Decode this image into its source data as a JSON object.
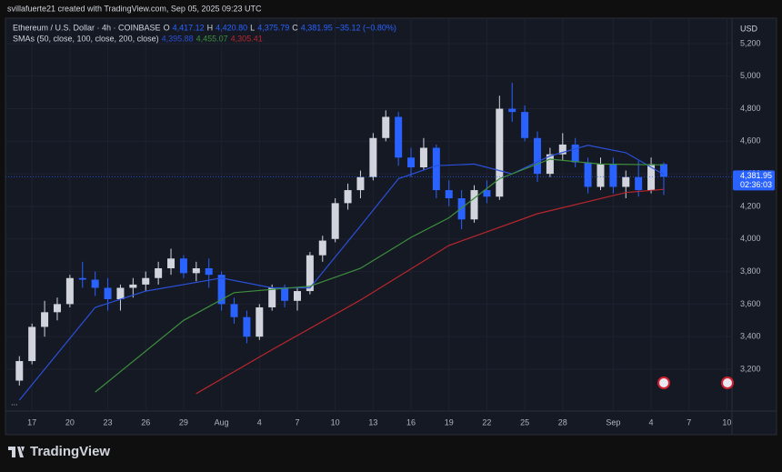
{
  "header": {
    "credit": "svillafuerte21 created with TradingView.com, Sep 05, 2025 09:23 UTC"
  },
  "chart_data": {
    "type": "candlestick",
    "symbol": "Ethereum / U.S. Dollar · 4h · COINBASE",
    "ohlc_legend": [
      {
        "label": "O",
        "value": "4,417.12"
      },
      {
        "label": "H",
        "value": "4,420.80"
      },
      {
        "label": "L",
        "value": "4,375.79"
      },
      {
        "label": "C",
        "value": "4,381.95"
      }
    ],
    "change": "−35.12 (−0.80%)",
    "indicator": "SMAs (50, close, 100, close, 200, close)",
    "currency": "USD",
    "collapse_label": "...",
    "x": [
      -1,
      0,
      1,
      2,
      3,
      4,
      5,
      6,
      7,
      8,
      9,
      10,
      11,
      12,
      13,
      14,
      15,
      16,
      17,
      18,
      19,
      20,
      21,
      22,
      23,
      24,
      25,
      26,
      27,
      28,
      29,
      30,
      31,
      32,
      33,
      34,
      35,
      36,
      37,
      38,
      39,
      40,
      41,
      42,
      43,
      44,
      45,
      46,
      47,
      48,
      49,
      50
    ],
    "open": [
      3130,
      3250,
      3460,
      3550,
      3600,
      3760,
      3750,
      3700,
      3630,
      3700,
      3720,
      3760,
      3820,
      3880,
      3790,
      3820,
      3780,
      3600,
      3520,
      3400,
      3580,
      3700,
      3620,
      3680,
      3900,
      4000,
      4220,
      4300,
      4380,
      4620,
      4750,
      4500,
      4440,
      4560,
      4300,
      4250,
      4120,
      4300,
      4260,
      4800,
      4780,
      4620,
      4400,
      4520,
      4580,
      4470,
      4320,
      4460,
      4320,
      4380,
      4300,
      4460
    ],
    "high": [
      3280,
      3480,
      3620,
      3640,
      3780,
      3860,
      3800,
      3760,
      3720,
      3760,
      3800,
      3860,
      3940,
      3900,
      3860,
      3880,
      3800,
      3640,
      3560,
      3600,
      3720,
      3720,
      3700,
      3920,
      4020,
      4250,
      4340,
      4420,
      4650,
      4790,
      4780,
      4560,
      4620,
      4580,
      4360,
      4300,
      4330,
      4360,
      4880,
      4960,
      4820,
      4660,
      4560,
      4650,
      4620,
      4500,
      4500,
      4500,
      4420,
      4480,
      4500,
      4470
    ],
    "low": [
      3100,
      3230,
      3400,
      3500,
      3580,
      3700,
      3650,
      3560,
      3560,
      3640,
      3680,
      3720,
      3780,
      3760,
      3740,
      3700,
      3560,
      3480,
      3360,
      3380,
      3560,
      3580,
      3560,
      3660,
      3860,
      3980,
      4180,
      4250,
      4360,
      4600,
      4450,
      4380,
      4420,
      4250,
      4200,
      4060,
      4100,
      4220,
      4240,
      4720,
      4600,
      4350,
      4380,
      4480,
      4440,
      4280,
      4300,
      4280,
      4250,
      4260,
      4280,
      4270
    ],
    "close": [
      3250,
      3460,
      3550,
      3600,
      3760,
      3750,
      3700,
      3630,
      3700,
      3720,
      3760,
      3820,
      3880,
      3790,
      3820,
      3780,
      3600,
      3520,
      3400,
      3580,
      3700,
      3620,
      3680,
      3900,
      3990,
      4220,
      4300,
      4380,
      4620,
      4750,
      4500,
      4440,
      4560,
      4300,
      4250,
      4120,
      4300,
      4260,
      4800,
      4780,
      4620,
      4400,
      4520,
      4580,
      4470,
      4320,
      4460,
      4320,
      4380,
      4300,
      4460,
      4381.95
    ],
    "up_color": "#d1d4dc",
    "down_color": "#2962ff",
    "series": [
      {
        "legend_value": "4,395.88",
        "color": "#2a50d8",
        "x": [
          -1,
          5,
          9,
          15,
          19,
          22,
          26,
          29,
          32,
          35,
          38,
          41,
          44,
          47,
          50
        ],
        "values": [
          3010,
          3580,
          3680,
          3760,
          3700,
          3700,
          4080,
          4370,
          4450,
          4460,
          4400,
          4510,
          4575,
          4530,
          4396
        ]
      },
      {
        "legend_value": "4,455.07",
        "color": "#3d8f3d",
        "x": [
          5,
          12,
          16,
          22,
          26,
          30,
          33,
          37,
          41,
          45,
          50
        ],
        "values": [
          3060,
          3500,
          3670,
          3710,
          3820,
          4010,
          4130,
          4370,
          4490,
          4460,
          4455
        ]
      },
      {
        "legend_value": "4,305.41",
        "color": "#b8262d",
        "x": [
          13,
          19,
          26,
          33,
          40,
          47,
          50
        ],
        "values": [
          3050,
          3320,
          3625,
          3960,
          4155,
          4285,
          4305
        ]
      }
    ],
    "price_label": "4,381.95",
    "countdown": "02:36:03",
    "xlim": [
      -2.1,
      55.4
    ],
    "ylim": [
      2943,
      5356
    ],
    "xticks": [
      {
        "value": 0,
        "label": "17"
      },
      {
        "value": 3,
        "label": "20"
      },
      {
        "value": 6,
        "label": "23"
      },
      {
        "value": 9,
        "label": "26"
      },
      {
        "value": 12,
        "label": "29"
      },
      {
        "value": 15,
        "label": "Aug"
      },
      {
        "value": 18,
        "label": "4"
      },
      {
        "value": 21,
        "label": "7"
      },
      {
        "value": 24,
        "label": "10"
      },
      {
        "value": 27,
        "label": "13"
      },
      {
        "value": 30,
        "label": "16"
      },
      {
        "value": 33,
        "label": "19"
      },
      {
        "value": 36,
        "label": "22"
      },
      {
        "value": 39,
        "label": "25"
      },
      {
        "value": 42,
        "label": "28"
      },
      {
        "value": 46,
        "label": "Sep"
      },
      {
        "value": 49,
        "label": "4"
      },
      {
        "value": 52,
        "label": "7"
      },
      {
        "value": 55,
        "label": "10"
      }
    ],
    "yticks": [
      {
        "value": 3200,
        "label": "3,200"
      },
      {
        "value": 3400,
        "label": "3,400"
      },
      {
        "value": 3600,
        "label": "3,600"
      },
      {
        "value": 3800,
        "label": "3,800"
      },
      {
        "value": 4000,
        "label": "4,000"
      },
      {
        "value": 4200,
        "label": "4,200"
      },
      {
        "value": 4400,
        "label": "4,400"
      },
      {
        "value": 4600,
        "label": "4,600"
      },
      {
        "value": 4800,
        "label": "4,800"
      },
      {
        "value": 5000,
        "label": "5,000"
      },
      {
        "value": 5200,
        "label": "5,200"
      }
    ],
    "grid": true
  },
  "footer": {
    "brand": "TradingView"
  }
}
